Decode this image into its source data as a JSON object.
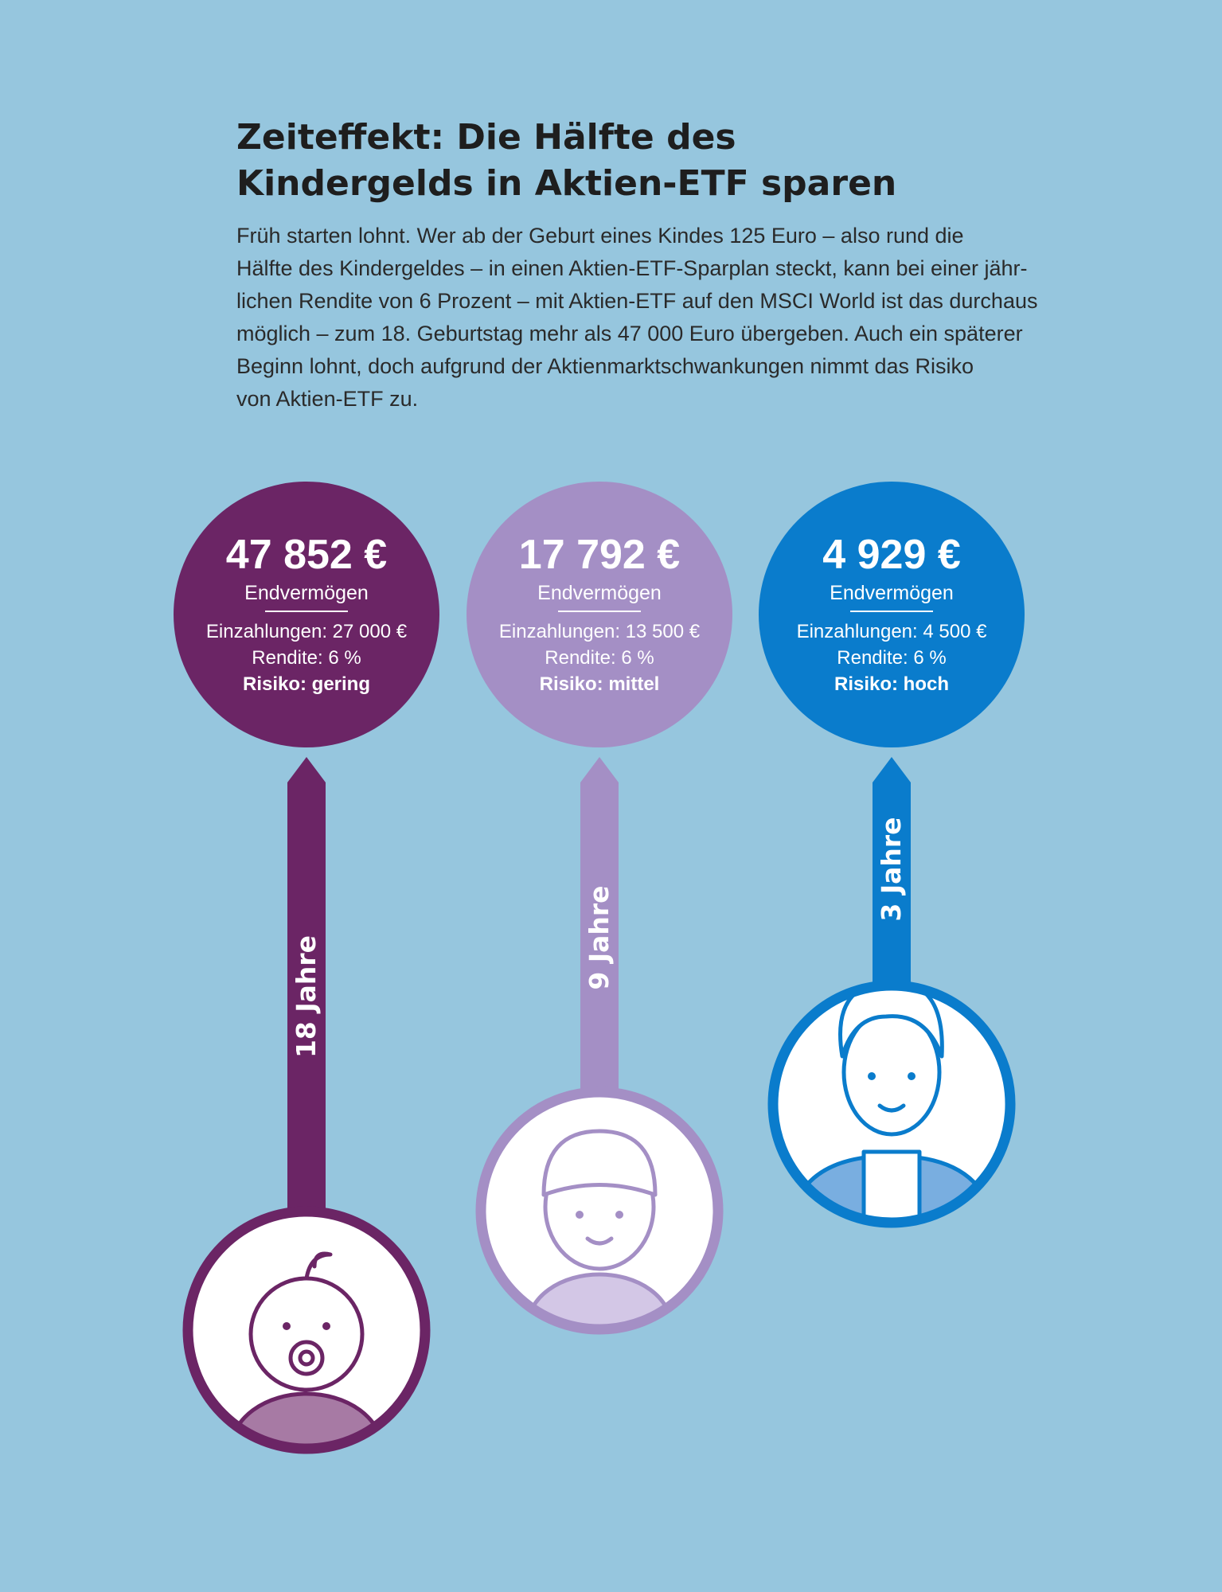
{
  "header": {
    "title_lines": [
      "Zeiteffekt: Die Hälfte des",
      "Kindergelds in Aktien-ETF sparen"
    ],
    "intro_lines": [
      "Früh starten lohnt. Wer ab der Geburt eines Kindes 125 Euro – also rund die",
      "Hälfte des Kindergeldes – in einen Aktien-ETF-Sparplan steckt, kann bei einer jähr-",
      "lichen Rendite von 6 Prozent – mit Aktien-ETF auf den MSCI World ist das durchaus",
      "möglich – zum 18. Geburtstag mehr als 47 000 Euro übergeben. Auch ein späterer",
      "Beginn lohnt, doch aufgrund der Aktienmarktschwankungen nimmt das Risiko",
      "von Aktien-ETF zu."
    ]
  },
  "cards": [
    {
      "amount": "47 852 €",
      "label": "Endvermögen",
      "deposits": "Einzahlungen: 27 000 €",
      "return": "Rendite: 6 %",
      "risk": "Risiko: gering",
      "duration": "18 Jahre",
      "color": "#6b2565",
      "light": "#a77aa4"
    },
    {
      "amount": "17 792 €",
      "label": "Endvermögen",
      "deposits": "Einzahlungen: 13 500 €",
      "return": "Rendite: 6 %",
      "risk": "Risiko: mittel",
      "duration": "9 Jahre",
      "color": "#a48fc5",
      "light": "#d3c7e6"
    },
    {
      "amount": "4 929 €",
      "label": "Endvermögen",
      "deposits": "Einzahlungen: 4 500 €",
      "return": "Rendite: 6 %",
      "risk": "Risiko: hoch",
      "duration": "3 Jahre",
      "color": "#0a7ccc",
      "light": "#79aee0"
    }
  ]
}
